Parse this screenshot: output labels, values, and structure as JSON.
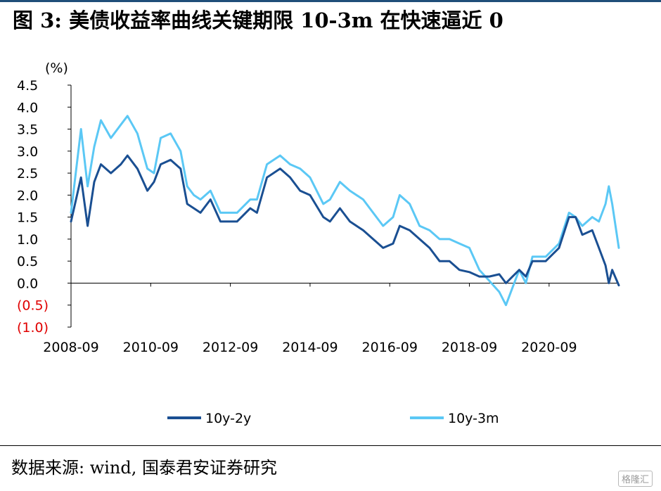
{
  "title": "图 3: 美债收益率曲线关键期限 10-3m 在快速逼近 0",
  "source": "数据来源: wind, 国泰君安证券研究",
  "watermark": "格隆汇",
  "colors": {
    "series_dark": "#1a4f92",
    "series_light": "#5bc8f5",
    "negative_label": "#e00000"
  },
  "chart_data": {
    "type": "line",
    "ylabel": "(%)",
    "ylim": [
      -1.0,
      4.5
    ],
    "grid": false,
    "legend_position": "bottom",
    "yticks": [
      {
        "value": 4.5,
        "label": "4.5"
      },
      {
        "value": 4.0,
        "label": "4.0"
      },
      {
        "value": 3.5,
        "label": "3.5"
      },
      {
        "value": 3.0,
        "label": "3.0"
      },
      {
        "value": 2.5,
        "label": "2.5"
      },
      {
        "value": 2.0,
        "label": "2.0"
      },
      {
        "value": 1.5,
        "label": "1.5"
      },
      {
        "value": 1.0,
        "label": "1.0"
      },
      {
        "value": 0.5,
        "label": "0.5"
      },
      {
        "value": 0.0,
        "label": "0.0"
      },
      {
        "value": -0.5,
        "label": "(0.5)"
      },
      {
        "value": -1.0,
        "label": "(1.0)"
      }
    ],
    "xticks": [
      "2008-09",
      "2010-09",
      "2012-09",
      "2014-09",
      "2016-09",
      "2018-09",
      "2020-09"
    ],
    "xrange": [
      "2008-09",
      "2022-06"
    ],
    "series": [
      {
        "name": "10y-2y",
        "color": "#1a4f92",
        "points": [
          [
            "2008-09",
            1.4
          ],
          [
            "2008-12",
            2.4
          ],
          [
            "2009-02",
            1.3
          ],
          [
            "2009-04",
            2.3
          ],
          [
            "2009-06",
            2.7
          ],
          [
            "2009-09",
            2.5
          ],
          [
            "2009-12",
            2.7
          ],
          [
            "2010-02",
            2.9
          ],
          [
            "2010-05",
            2.6
          ],
          [
            "2010-08",
            2.1
          ],
          [
            "2010-10",
            2.3
          ],
          [
            "2010-12",
            2.7
          ],
          [
            "2011-03",
            2.8
          ],
          [
            "2011-06",
            2.6
          ],
          [
            "2011-08",
            1.8
          ],
          [
            "2011-10",
            1.7
          ],
          [
            "2011-12",
            1.6
          ],
          [
            "2012-03",
            1.9
          ],
          [
            "2012-06",
            1.4
          ],
          [
            "2012-08",
            1.4
          ],
          [
            "2012-11",
            1.4
          ],
          [
            "2013-03",
            1.7
          ],
          [
            "2013-05",
            1.6
          ],
          [
            "2013-08",
            2.4
          ],
          [
            "2013-12",
            2.6
          ],
          [
            "2014-03",
            2.4
          ],
          [
            "2014-06",
            2.1
          ],
          [
            "2014-09",
            2.0
          ],
          [
            "2015-01",
            1.5
          ],
          [
            "2015-03",
            1.4
          ],
          [
            "2015-06",
            1.7
          ],
          [
            "2015-09",
            1.4
          ],
          [
            "2016-01",
            1.2
          ],
          [
            "2016-04",
            1.0
          ],
          [
            "2016-07",
            0.8
          ],
          [
            "2016-10",
            0.9
          ],
          [
            "2016-12",
            1.3
          ],
          [
            "2017-03",
            1.2
          ],
          [
            "2017-06",
            1.0
          ],
          [
            "2017-09",
            0.8
          ],
          [
            "2017-12",
            0.5
          ],
          [
            "2018-03",
            0.5
          ],
          [
            "2018-06",
            0.3
          ],
          [
            "2018-09",
            0.25
          ],
          [
            "2018-12",
            0.15
          ],
          [
            "2019-03",
            0.15
          ],
          [
            "2019-06",
            0.2
          ],
          [
            "2019-08",
            0.0
          ],
          [
            "2019-10",
            0.15
          ],
          [
            "2019-12",
            0.3
          ],
          [
            "2020-02",
            0.15
          ],
          [
            "2020-04",
            0.5
          ],
          [
            "2020-08",
            0.5
          ],
          [
            "2020-12",
            0.8
          ],
          [
            "2021-03",
            1.5
          ],
          [
            "2021-05",
            1.5
          ],
          [
            "2021-07",
            1.1
          ],
          [
            "2021-10",
            1.2
          ],
          [
            "2021-12",
            0.8
          ],
          [
            "2022-02",
            0.4
          ],
          [
            "2022-03",
            0.0
          ],
          [
            "2022-04",
            0.3
          ],
          [
            "2022-06",
            -0.05
          ]
        ]
      },
      {
        "name": "10y-3m",
        "color": "#5bc8f5",
        "points": [
          [
            "2008-09",
            1.6
          ],
          [
            "2008-12",
            3.5
          ],
          [
            "2009-02",
            2.2
          ],
          [
            "2009-04",
            3.1
          ],
          [
            "2009-06",
            3.7
          ],
          [
            "2009-09",
            3.3
          ],
          [
            "2009-12",
            3.6
          ],
          [
            "2010-02",
            3.8
          ],
          [
            "2010-05",
            3.4
          ],
          [
            "2010-08",
            2.6
          ],
          [
            "2010-10",
            2.5
          ],
          [
            "2010-12",
            3.3
          ],
          [
            "2011-03",
            3.4
          ],
          [
            "2011-06",
            3.0
          ],
          [
            "2011-08",
            2.2
          ],
          [
            "2011-10",
            2.0
          ],
          [
            "2011-12",
            1.9
          ],
          [
            "2012-03",
            2.1
          ],
          [
            "2012-06",
            1.6
          ],
          [
            "2012-08",
            1.6
          ],
          [
            "2012-11",
            1.6
          ],
          [
            "2013-03",
            1.9
          ],
          [
            "2013-05",
            1.9
          ],
          [
            "2013-08",
            2.7
          ],
          [
            "2013-12",
            2.9
          ],
          [
            "2014-03",
            2.7
          ],
          [
            "2014-06",
            2.6
          ],
          [
            "2014-09",
            2.4
          ],
          [
            "2015-01",
            1.8
          ],
          [
            "2015-03",
            1.9
          ],
          [
            "2015-06",
            2.3
          ],
          [
            "2015-09",
            2.1
          ],
          [
            "2016-01",
            1.9
          ],
          [
            "2016-04",
            1.6
          ],
          [
            "2016-07",
            1.3
          ],
          [
            "2016-10",
            1.5
          ],
          [
            "2016-12",
            2.0
          ],
          [
            "2017-03",
            1.8
          ],
          [
            "2017-06",
            1.3
          ],
          [
            "2017-09",
            1.2
          ],
          [
            "2017-12",
            1.0
          ],
          [
            "2018-03",
            1.0
          ],
          [
            "2018-06",
            0.9
          ],
          [
            "2018-09",
            0.8
          ],
          [
            "2018-12",
            0.3
          ],
          [
            "2019-03",
            0.05
          ],
          [
            "2019-06",
            -0.2
          ],
          [
            "2019-08",
            -0.5
          ],
          [
            "2019-10",
            -0.1
          ],
          [
            "2019-12",
            0.3
          ],
          [
            "2020-02",
            0.0
          ],
          [
            "2020-04",
            0.6
          ],
          [
            "2020-08",
            0.6
          ],
          [
            "2020-12",
            0.9
          ],
          [
            "2021-03",
            1.6
          ],
          [
            "2021-05",
            1.5
          ],
          [
            "2021-07",
            1.3
          ],
          [
            "2021-10",
            1.5
          ],
          [
            "2021-12",
            1.4
          ],
          [
            "2022-02",
            1.8
          ],
          [
            "2022-03",
            2.2
          ],
          [
            "2022-04",
            1.8
          ],
          [
            "2022-06",
            0.8
          ]
        ]
      }
    ]
  }
}
